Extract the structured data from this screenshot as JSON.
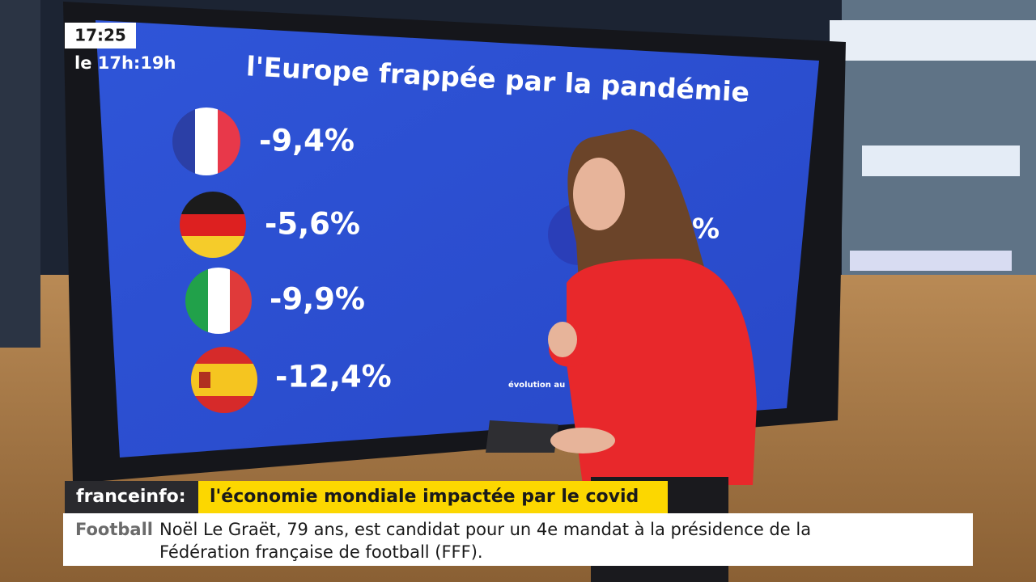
{
  "overlay": {
    "clock": "17:25",
    "program": "le 17h:19h"
  },
  "screen": {
    "title": "l'Europe frappée par la pandémie",
    "values": [
      "-9,4%",
      "-5,6%",
      "-9,9%",
      "-12,4%"
    ],
    "eu_value": "%",
    "footnote": "évolution au"
  },
  "banner": {
    "brand": "franceinfo:",
    "headline": "l'économie mondiale impactée par le covid"
  },
  "ticker": {
    "category": "Football",
    "lines": [
      "Noël Le Graët, 79 ans, est candidat pour un 4e mandat à la présidence de la",
      "Fédération française de football (FFF)."
    ]
  }
}
